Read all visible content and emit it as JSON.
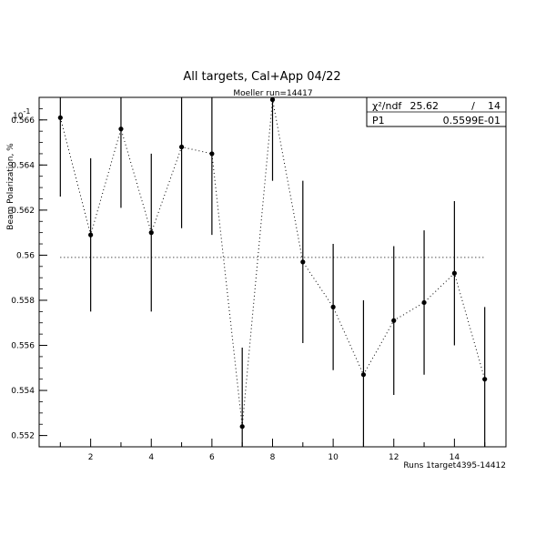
{
  "chart_data": {
    "type": "scatter",
    "title": "All targets, Cal+App 04/22",
    "subtitle": "Moeller run=14417",
    "xlabel": "Runs 1target4395-14412",
    "ylabel": "Beam Polarization, %",
    "y_exponent_label": "10",
    "y_exponent_sup": "-1",
    "xlim": [
      0.3,
      15.7
    ],
    "ylim": [
      0.5515,
      0.567
    ],
    "x_ticks": [
      2,
      4,
      6,
      8,
      10,
      12,
      14
    ],
    "x_tick_labels": [
      "2",
      "4",
      "6",
      "8",
      "10",
      "12",
      "14"
    ],
    "y_ticks": [
      0.552,
      0.554,
      0.556,
      0.558,
      0.56,
      0.562,
      0.564,
      0.566
    ],
    "y_tick_labels": [
      "0.552",
      "0.554",
      "0.556",
      "0.558",
      "0.56",
      "0.562",
      "0.564",
      "0.566"
    ],
    "points": [
      {
        "x": 1,
        "y": 0.5661,
        "err": 0.0035
      },
      {
        "x": 2,
        "y": 0.5609,
        "err": 0.0034
      },
      {
        "x": 3,
        "y": 0.5656,
        "err": 0.0035
      },
      {
        "x": 4,
        "y": 0.561,
        "err": 0.0035
      },
      {
        "x": 5,
        "y": 0.5648,
        "err": 0.0036
      },
      {
        "x": 6,
        "y": 0.5645,
        "err": 0.0036
      },
      {
        "x": 7,
        "y": 0.5524,
        "err": 0.0035
      },
      {
        "x": 8,
        "y": 0.5669,
        "err": 0.0036
      },
      {
        "x": 9,
        "y": 0.5597,
        "err": 0.0036
      },
      {
        "x": 10,
        "y": 0.5577,
        "err": 0.0028
      },
      {
        "x": 11,
        "y": 0.5547,
        "err": 0.0033
      },
      {
        "x": 12,
        "y": 0.5571,
        "err": 0.0033
      },
      {
        "x": 13,
        "y": 0.5579,
        "err": 0.0032
      },
      {
        "x": 14,
        "y": 0.5592,
        "err": 0.0032
      },
      {
        "x": 15,
        "y": 0.5545,
        "err": 0.0032
      }
    ],
    "fit": {
      "y": 0.5599,
      "x_from": 1,
      "x_to": 15
    },
    "stats": {
      "chi2_label": "χ²/ndf",
      "chi2_value": "25.62",
      "slash": "/",
      "ndf": "14",
      "p1_label": "P1",
      "p1_value": "0.5599E-01"
    },
    "grid": false,
    "connect_points": "dotted"
  }
}
